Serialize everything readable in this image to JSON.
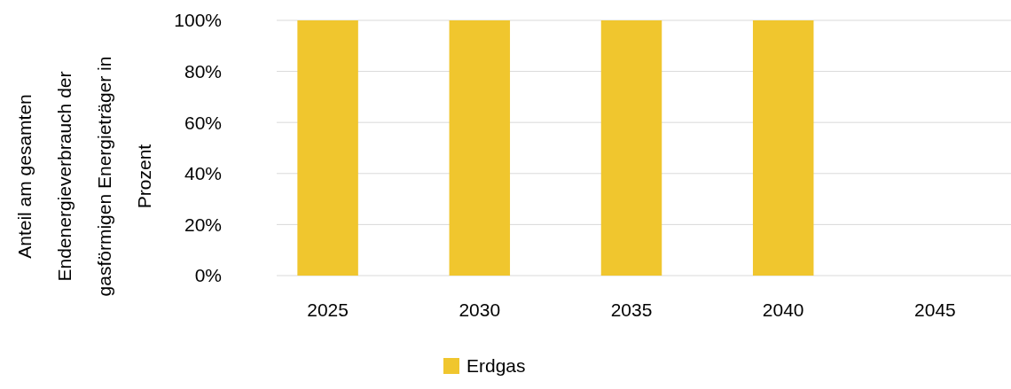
{
  "chart_data": {
    "type": "bar",
    "ylabel": "Anteil am gesamten Endenergieverbrauch der gasförmigen Energieträger in Prozent",
    "categories": [
      "2025",
      "2030",
      "2035",
      "2040",
      "2045"
    ],
    "series": [
      {
        "name": "Erdgas",
        "color": "#f0c62e",
        "values": [
          100,
          100,
          100,
          100,
          0
        ]
      }
    ],
    "ylim": [
      0,
      100
    ],
    "yticks": [
      {
        "value": 0,
        "label": "0%"
      },
      {
        "value": 20,
        "label": "20%"
      },
      {
        "value": 40,
        "label": "40%"
      },
      {
        "value": 60,
        "label": "60%"
      },
      {
        "value": 80,
        "label": "80%"
      },
      {
        "value": 100,
        "label": "100%"
      }
    ],
    "grid": "y",
    "legend": "bottom"
  }
}
